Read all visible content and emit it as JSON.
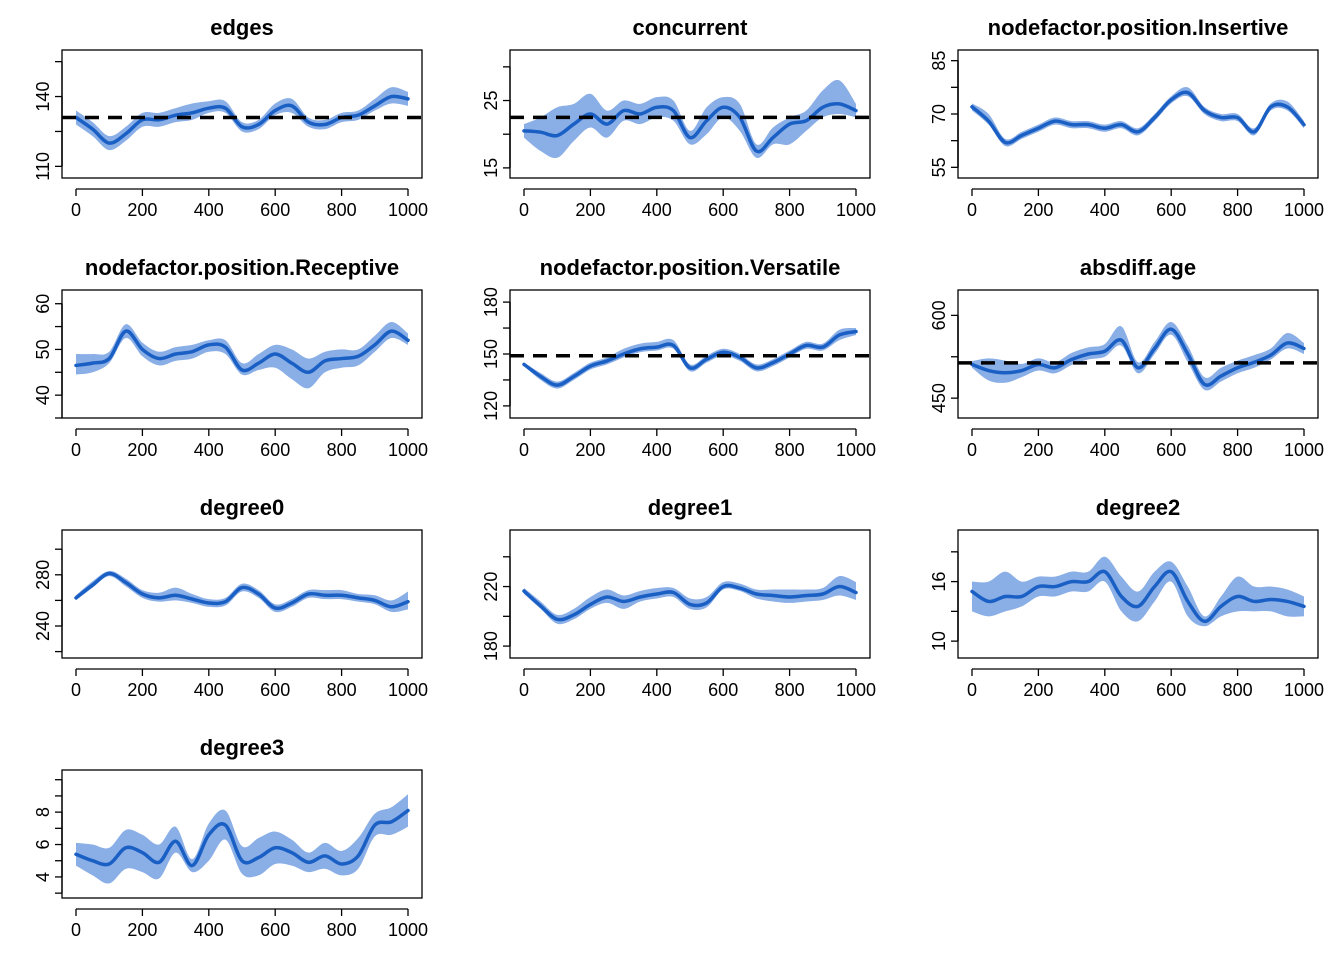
{
  "colors": {
    "band": "#8aaee6",
    "mean": "#1a5fc4",
    "target": "#000000",
    "axis": "#000000"
  },
  "chart_data": [
    {
      "type": "line",
      "title": "edges",
      "xlabel": "",
      "ylabel": "",
      "xlim": [
        0,
        1000
      ],
      "xticks": [
        0,
        200,
        400,
        600,
        800,
        1000
      ],
      "ylim": [
        105,
        160
      ],
      "yticks": [
        110,
        140
      ],
      "target": 131,
      "x": [
        0,
        50,
        100,
        150,
        200,
        250,
        300,
        350,
        400,
        450,
        500,
        550,
        600,
        650,
        700,
        750,
        800,
        850,
        900,
        950,
        1000
      ],
      "mean": [
        131,
        126,
        120,
        124,
        130,
        130,
        132,
        133,
        135,
        135,
        127,
        128,
        134,
        136,
        129,
        128,
        131,
        132,
        136,
        140,
        139
      ],
      "lower": [
        128,
        123,
        117,
        121,
        127,
        127,
        129,
        130,
        133,
        133,
        125,
        126,
        132,
        133,
        127,
        126,
        129,
        130,
        134,
        137,
        136
      ],
      "upper": [
        134,
        129,
        123,
        127,
        133,
        133,
        135,
        137,
        138,
        138,
        129,
        130,
        137,
        139,
        131,
        130,
        133,
        134,
        139,
        144,
        142
      ]
    },
    {
      "type": "line",
      "title": "concurrent",
      "xlabel": "",
      "ylabel": "",
      "xlim": [
        0,
        1000
      ],
      "xticks": [
        0,
        200,
        400,
        600,
        800,
        1000
      ],
      "ylim": [
        13.5,
        32.5
      ],
      "yticks": [
        15,
        25
      ],
      "target": 22.5,
      "x": [
        0,
        50,
        100,
        150,
        200,
        250,
        300,
        350,
        400,
        450,
        500,
        550,
        600,
        650,
        700,
        750,
        800,
        850,
        900,
        950,
        1000
      ],
      "mean": [
        20.5,
        20.3,
        19.8,
        21.5,
        23,
        21.5,
        23.5,
        23,
        24,
        23.5,
        19.5,
        22,
        24,
        22.5,
        17.5,
        19.5,
        21.5,
        22,
        24,
        24.5,
        23.5
      ],
      "lower": [
        19.5,
        17.5,
        16.5,
        19,
        21,
        19.5,
        22,
        21.5,
        22.5,
        22,
        18.5,
        20,
        22.5,
        20.5,
        16.5,
        18.5,
        18.5,
        20.5,
        22.5,
        23,
        22.5
      ],
      "upper": [
        21.5,
        22.5,
        24,
        24.5,
        26,
        23.5,
        25,
        24.5,
        25.5,
        25,
        20.5,
        24,
        25.5,
        24.5,
        18.5,
        21,
        22.5,
        23.5,
        26.5,
        28,
        24.5
      ]
    },
    {
      "type": "line",
      "title": "nodefactor.position.Insertive",
      "xlabel": "",
      "ylabel": "",
      "xlim": [
        0,
        1000
      ],
      "xticks": [
        0,
        200,
        400,
        600,
        800,
        1000
      ],
      "ylim": [
        52,
        88
      ],
      "yticks": [
        55,
        70,
        85
      ],
      "x": [
        0,
        50,
        100,
        150,
        200,
        250,
        300,
        350,
        400,
        450,
        500,
        550,
        600,
        650,
        700,
        750,
        800,
        850,
        900,
        950,
        1000
      ],
      "mean": [
        72,
        68,
        62,
        64,
        66,
        68,
        67,
        67,
        66,
        67,
        65,
        69,
        74,
        76,
        71,
        69,
        69,
        65,
        72,
        72,
        67
      ],
      "lower": [
        71,
        67,
        61,
        63,
        65,
        67,
        66,
        66,
        65,
        66,
        64,
        68,
        73,
        75,
        70,
        68,
        68,
        64,
        71,
        71,
        66
      ],
      "upper": [
        73,
        70,
        63,
        65,
        67,
        69,
        68,
        68,
        67,
        68,
        66,
        70,
        75,
        77.5,
        72,
        70,
        70,
        66,
        73,
        73.5,
        68
      ]
    },
    {
      "type": "line",
      "title": "nodefactor.position.Receptive",
      "xlabel": "",
      "ylabel": "",
      "xlim": [
        0,
        1000
      ],
      "xticks": [
        0,
        200,
        400,
        600,
        800,
        1000
      ],
      "ylim": [
        35,
        63
      ],
      "yticks": [
        40,
        50,
        60
      ],
      "x": [
        0,
        50,
        100,
        150,
        200,
        250,
        300,
        350,
        400,
        450,
        500,
        550,
        600,
        650,
        700,
        750,
        800,
        850,
        900,
        950,
        1000
      ],
      "mean": [
        46.5,
        47,
        48,
        54,
        50,
        48,
        49,
        49.5,
        51,
        50.5,
        45.5,
        47,
        49,
        47,
        45,
        47.5,
        48,
        48.5,
        51,
        54,
        52
      ],
      "lower": [
        44.5,
        45,
        47,
        52.5,
        48.5,
        46.5,
        47.5,
        48,
        49.5,
        49,
        44.5,
        45.5,
        46,
        43.5,
        41.5,
        45,
        46,
        46.5,
        49.5,
        52.5,
        51
      ],
      "upper": [
        49,
        49,
        49.5,
        55.5,
        51.5,
        49.5,
        50.5,
        51,
        52,
        52,
        47,
        49,
        51,
        50,
        48,
        49.5,
        50,
        50,
        53,
        56,
        53.5
      ]
    },
    {
      "type": "line",
      "title": "nodefactor.position.Versatile",
      "xlabel": "",
      "ylabel": "",
      "xlim": [
        0,
        1000
      ],
      "xticks": [
        0,
        200,
        400,
        600,
        800,
        1000
      ],
      "ylim": [
        113,
        187
      ],
      "yticks": [
        120,
        150,
        180
      ],
      "target": 149,
      "x": [
        0,
        50,
        100,
        150,
        200,
        250,
        300,
        350,
        400,
        450,
        500,
        550,
        600,
        650,
        700,
        750,
        800,
        850,
        900,
        950,
        1000
      ],
      "mean": [
        144,
        137,
        132,
        137,
        143,
        146,
        150,
        153,
        154,
        155,
        142,
        147,
        151,
        148,
        142,
        145,
        150,
        155,
        154,
        161,
        163
      ],
      "lower": [
        143,
        135,
        130,
        135,
        141,
        144,
        148,
        151,
        152,
        153,
        140,
        145,
        149,
        146,
        140,
        143,
        148,
        153,
        152,
        158,
        161
      ],
      "upper": [
        145,
        139,
        134,
        139,
        145,
        148,
        153,
        156,
        157,
        158,
        144,
        149,
        153,
        150,
        144,
        147,
        152,
        157,
        156,
        164,
        165
      ]
    },
    {
      "type": "line",
      "title": "absdiff.age",
      "xlabel": "",
      "ylabel": "",
      "xlim": [
        0,
        1000
      ],
      "xticks": [
        0,
        200,
        400,
        600,
        800,
        1000
      ],
      "ylim": [
        414,
        646
      ],
      "yticks": [
        450,
        600
      ],
      "target": 514,
      "x": [
        0,
        50,
        100,
        150,
        200,
        250,
        300,
        350,
        400,
        450,
        500,
        550,
        600,
        650,
        700,
        750,
        800,
        850,
        900,
        950,
        1000
      ],
      "mean": [
        511,
        500,
        496,
        500,
        511,
        505,
        520,
        530,
        535,
        555,
        505,
        540,
        575,
        530,
        475,
        490,
        505,
        515,
        528,
        550,
        540
      ],
      "lower": [
        505,
        482,
        478,
        488,
        500,
        495,
        510,
        520,
        525,
        545,
        495,
        530,
        565,
        515,
        465,
        480,
        495,
        505,
        520,
        540,
        530
      ],
      "upper": [
        517,
        522,
        518,
        512,
        522,
        515,
        532,
        542,
        548,
        580,
        515,
        552,
        588,
        545,
        488,
        505,
        518,
        528,
        540,
        568,
        550
      ]
    },
    {
      "type": "line",
      "title": "degree0",
      "xlabel": "",
      "ylabel": "",
      "xlim": [
        0,
        1000
      ],
      "xticks": [
        0,
        200,
        400,
        600,
        800,
        1000
      ],
      "ylim": [
        215,
        315
      ],
      "yticks": [
        240,
        280
      ],
      "x": [
        0,
        50,
        100,
        150,
        200,
        250,
        300,
        350,
        400,
        450,
        500,
        550,
        600,
        650,
        700,
        750,
        800,
        850,
        900,
        950,
        1000
      ],
      "mean": [
        262,
        272,
        281,
        274,
        265,
        262,
        264,
        261,
        258,
        259,
        270,
        265,
        254,
        258,
        265,
        264,
        264,
        262,
        260,
        255,
        259
      ],
      "lower": [
        260,
        270,
        279,
        271,
        262,
        259,
        260,
        258,
        255,
        256,
        267,
        262,
        251,
        255,
        262,
        261,
        261,
        259,
        257,
        251,
        253
      ],
      "upper": [
        264,
        275,
        283,
        277,
        268,
        266,
        270,
        265,
        261,
        262,
        273,
        268,
        257,
        261,
        268,
        268,
        268,
        265,
        264,
        260,
        267
      ]
    },
    {
      "type": "line",
      "title": "degree1",
      "xlabel": "",
      "ylabel": "",
      "xlim": [
        0,
        1000
      ],
      "xticks": [
        0,
        200,
        400,
        600,
        800,
        1000
      ],
      "ylim": [
        172,
        258
      ],
      "yticks": [
        180,
        220
      ],
      "x": [
        0,
        50,
        100,
        150,
        200,
        250,
        300,
        350,
        400,
        450,
        500,
        550,
        600,
        650,
        700,
        750,
        800,
        850,
        900,
        950,
        1000
      ],
      "mean": [
        217,
        207,
        198,
        201,
        208,
        213,
        210,
        213,
        215,
        216,
        208,
        209,
        220,
        219,
        215,
        214,
        213,
        214,
        215,
        220,
        216
      ],
      "lower": [
        215,
        205,
        195,
        198,
        205,
        209,
        205,
        210,
        212,
        213,
        205,
        206,
        218,
        217,
        212,
        210,
        209,
        210,
        211,
        214,
        211
      ],
      "upper": [
        219,
        210,
        201,
        205,
        213,
        218,
        214,
        217,
        219,
        219,
        212,
        213,
        223,
        222,
        218,
        218,
        218,
        218,
        219,
        227,
        223
      ]
    },
    {
      "type": "line",
      "title": "degree2",
      "xlabel": "",
      "ylabel": "",
      "xlim": [
        0,
        1000
      ],
      "xticks": [
        0,
        200,
        400,
        600,
        800,
        1000
      ],
      "ylim": [
        8.3,
        21.2
      ],
      "yticks": [
        10,
        16
      ],
      "x": [
        0,
        50,
        100,
        150,
        200,
        250,
        300,
        350,
        400,
        450,
        500,
        550,
        600,
        650,
        700,
        750,
        800,
        850,
        900,
        950,
        1000
      ],
      "mean": [
        15,
        14,
        14.5,
        14.5,
        15.5,
        15.5,
        16,
        16,
        17,
        14.5,
        13.5,
        15.5,
        17,
        14,
        12,
        13.5,
        14.5,
        14,
        14.2,
        14,
        13.5
      ],
      "lower": [
        13,
        12.5,
        13,
        13.5,
        14.5,
        14.5,
        15,
        15,
        16,
        13,
        12,
        14,
        16,
        12.5,
        11.5,
        12.5,
        13,
        13,
        13,
        12.5,
        12.5
      ],
      "upper": [
        16,
        16,
        17,
        16,
        16.5,
        16.5,
        17,
        17,
        18.5,
        16.5,
        15,
        17,
        18,
        15.5,
        12.5,
        14.5,
        16.5,
        15.5,
        15.5,
        15.2,
        14.5
      ]
    },
    {
      "type": "line",
      "title": "degree3",
      "xlabel": "",
      "ylabel": "",
      "xlim": [
        0,
        1000
      ],
      "xticks": [
        0,
        200,
        400,
        600,
        800,
        1000
      ],
      "ylim": [
        2.7,
        10.6
      ],
      "yticks": [
        4,
        6,
        8
      ],
      "x": [
        0,
        50,
        100,
        150,
        200,
        250,
        300,
        350,
        400,
        450,
        500,
        550,
        600,
        650,
        700,
        750,
        800,
        850,
        900,
        950,
        1000
      ],
      "mean": [
        5.4,
        5.0,
        4.8,
        5.8,
        5.5,
        4.9,
        6.2,
        4.7,
        6.6,
        7.2,
        5.0,
        5.2,
        5.8,
        5.5,
        4.9,
        5.3,
        4.8,
        5.3,
        7.2,
        7.4,
        8.1
      ],
      "lower": [
        4.7,
        4.1,
        3.6,
        4.5,
        4.3,
        3.9,
        5.5,
        4.3,
        5.0,
        6.3,
        4.2,
        4.1,
        4.8,
        4.7,
        4.3,
        4.5,
        4.1,
        4.5,
        6.5,
        6.6,
        7.1
      ],
      "upper": [
        6.1,
        6.0,
        5.8,
        6.9,
        6.6,
        6.0,
        7.1,
        5.1,
        7.3,
        8.1,
        5.9,
        6.4,
        6.8,
        6.3,
        5.5,
        6.1,
        5.6,
        6.4,
        7.9,
        8.3,
        9.1
      ]
    }
  ]
}
